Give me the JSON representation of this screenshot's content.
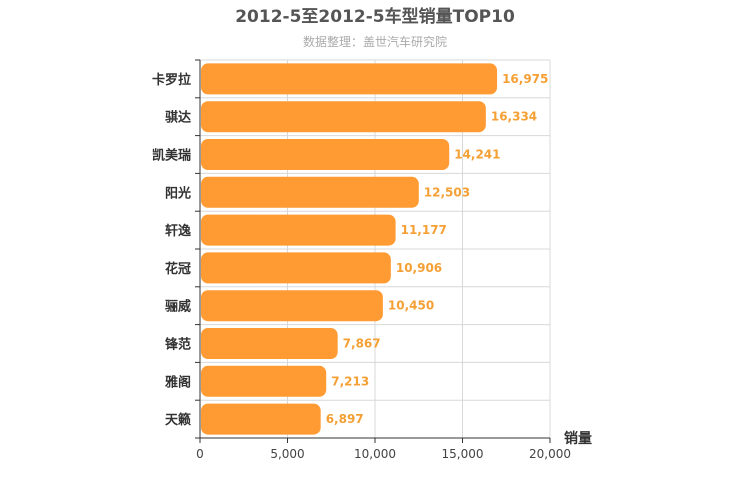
{
  "chart_data": {
    "type": "bar",
    "orientation": "horizontal",
    "title": "2012-5至2012-5车型销量TOP10",
    "subtitle": "数据整理：盖世汽车研究院",
    "xlabel": "销量",
    "categories": [
      "卡罗拉",
      "骐达",
      "凯美瑞",
      "阳光",
      "轩逸",
      "花冠",
      "骊威",
      "锋范",
      "雅阁",
      "天籁"
    ],
    "values": [
      16975,
      16334,
      14241,
      12503,
      11177,
      10906,
      10450,
      7867,
      7213,
      6897
    ],
    "value_labels": [
      "16,975",
      "16,334",
      "14,241",
      "12,503",
      "11,177",
      "10,906",
      "10,450",
      "7,867",
      "7,213",
      "6,897"
    ],
    "xlim": [
      0,
      20000
    ],
    "xticks": [
      0,
      5000,
      10000,
      15000,
      20000
    ],
    "xtick_labels": [
      "0",
      "5,000",
      "10,000",
      "15,000",
      "20,000"
    ],
    "grid": true,
    "bar_color": "#ff9b32",
    "value_label_color": "#f5a035"
  }
}
